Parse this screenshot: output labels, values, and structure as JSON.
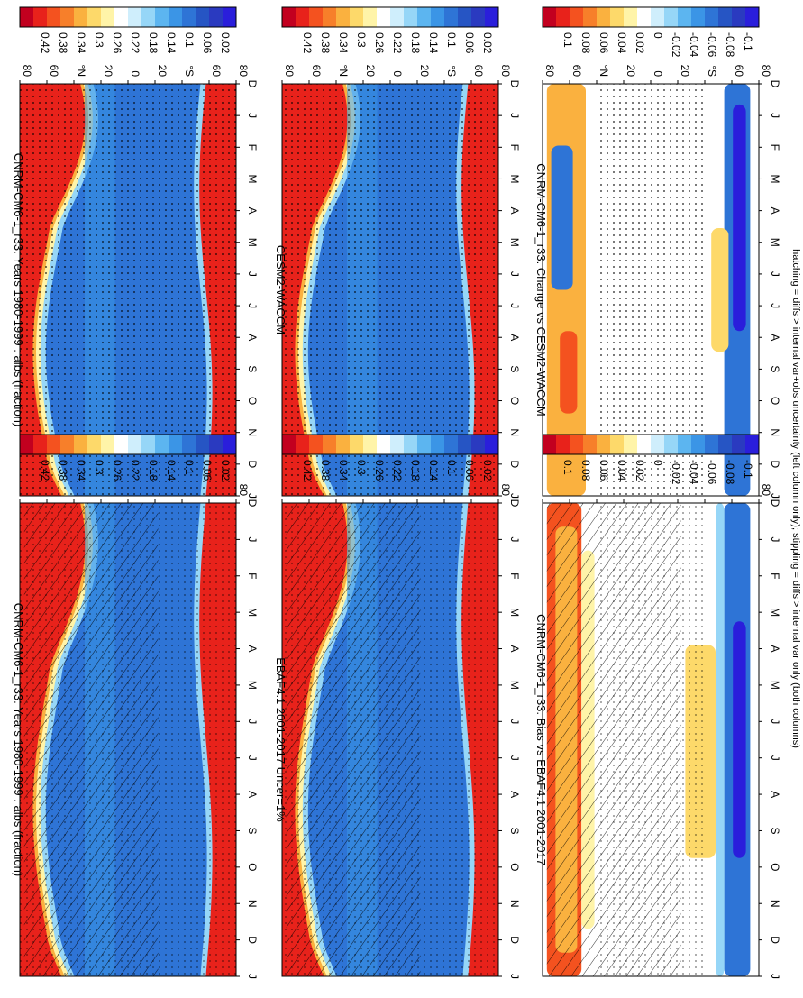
{
  "footer_note": "hatching = diffs > internal var+obs uncertainty (left column only); stippling = diffs > internal var only (both columns)",
  "colorbars": {
    "absolute": {
      "labels": [
        "0.42",
        "0.38",
        "0.34",
        "0.3",
        "0.26",
        "0.22",
        "0.18",
        "0.14",
        "0.1",
        "0.06",
        "0.02"
      ],
      "colors": [
        "#c2001f",
        "#e8221b",
        "#f4521f",
        "#f77f2a",
        "#fab13f",
        "#fdd96a",
        "#fff4a8",
        "#ffffff",
        "#cfeefc",
        "#96d6f7",
        "#5cb5f0",
        "#3b95e6",
        "#2e74d6",
        "#2655c4",
        "#2a3ac0",
        "#2a1edb"
      ]
    },
    "difference": {
      "labels": [
        "0.1",
        "0.08",
        "0.06",
        "0.04",
        "0.02",
        "0",
        "-0.02",
        "-0.04",
        "-0.06",
        "-0.08",
        "-0.1"
      ],
      "colors": [
        "#c2001f",
        "#e8221b",
        "#f4521f",
        "#f77f2a",
        "#fab13f",
        "#fdd96a",
        "#fff4a8",
        "#ffffff",
        "#cfeefc",
        "#96d6f7",
        "#5cb5f0",
        "#3b95e6",
        "#2e74d6",
        "#2655c4",
        "#2a3ac0",
        "#2a1edb"
      ]
    }
  },
  "chart_data": [
    {
      "type": "heatmap",
      "panel": "left-top",
      "title": "CNRM-CM6-1_r33: Years 1980-1999 : albs (fraction)",
      "x_ticks": [
        "D",
        "J",
        "F",
        "M",
        "A",
        "M",
        "J",
        "J",
        "A",
        "S",
        "O",
        "N",
        "D",
        "J"
      ],
      "y_ticks": [
        "80",
        "60",
        "°N",
        "20",
        "0",
        "20",
        "°S",
        "60",
        "80"
      ],
      "variable": "albs",
      "colorbar": "absolute",
      "hatching": true,
      "stippling": true
    },
    {
      "type": "heatmap",
      "panel": "right-top",
      "title": "CNRM-CM6-1_r33: Years 1980-1999 : albs (fraction)",
      "x_ticks": [
        "D",
        "J",
        "F",
        "M",
        "A",
        "M",
        "J",
        "J",
        "A",
        "S",
        "O",
        "N",
        "D",
        "J"
      ],
      "y_ticks": [
        "80",
        "60",
        "°N",
        "20",
        "0",
        "20",
        "°S",
        "60",
        "80"
      ],
      "variable": "albs",
      "colorbar": "absolute",
      "hatching": false,
      "stippling": true
    },
    {
      "type": "heatmap",
      "panel": "left-middle",
      "title": "EBAF4.1 2001-2017 Uncer=1%",
      "x_ticks": [
        "D",
        "J",
        "F",
        "M",
        "A",
        "M",
        "J",
        "J",
        "A",
        "S",
        "O",
        "N",
        "D",
        "J"
      ],
      "y_ticks": [
        "80",
        "60",
        "°N",
        "20",
        "0",
        "20",
        "°S",
        "60",
        "80"
      ],
      "colorbar": "absolute",
      "hatching": true,
      "stippling": true
    },
    {
      "type": "heatmap",
      "panel": "right-middle",
      "title": "CESM2-WACCM",
      "x_ticks": [
        "D",
        "J",
        "F",
        "M",
        "A",
        "M",
        "J",
        "J",
        "A",
        "S",
        "O",
        "N",
        "D",
        "J"
      ],
      "y_ticks": [
        "80",
        "60",
        "°N",
        "20",
        "0",
        "20",
        "°S",
        "60",
        "80"
      ],
      "colorbar": "absolute",
      "hatching": false,
      "stippling": true
    },
    {
      "type": "heatmap",
      "panel": "left-bottom",
      "title": "CNRM-CM6-1_r33: Bias vs EBAF4.1 2001-2017",
      "x_ticks": [
        "D",
        "J",
        "F",
        "M",
        "A",
        "M",
        "J",
        "J",
        "A",
        "S",
        "O",
        "N",
        "D",
        "J"
      ],
      "y_ticks": [
        "80",
        "60",
        "°N",
        "20",
        "0",
        "20",
        "°S",
        "60",
        "80"
      ],
      "colorbar": "difference",
      "hatching": true,
      "stippling": true
    },
    {
      "type": "heatmap",
      "panel": "right-bottom",
      "title": "CNRM-CM6-1_r33: Change vs CESM2-WACCM",
      "x_ticks": [
        "D",
        "J",
        "F",
        "M",
        "A",
        "M",
        "J",
        "J",
        "A",
        "S",
        "O",
        "N",
        "D",
        "J"
      ],
      "y_ticks": [
        "80",
        "60",
        "°N",
        "20",
        "0",
        "20",
        "°S",
        "60",
        "80"
      ],
      "colorbar": "difference",
      "hatching": false,
      "stippling": true
    }
  ]
}
